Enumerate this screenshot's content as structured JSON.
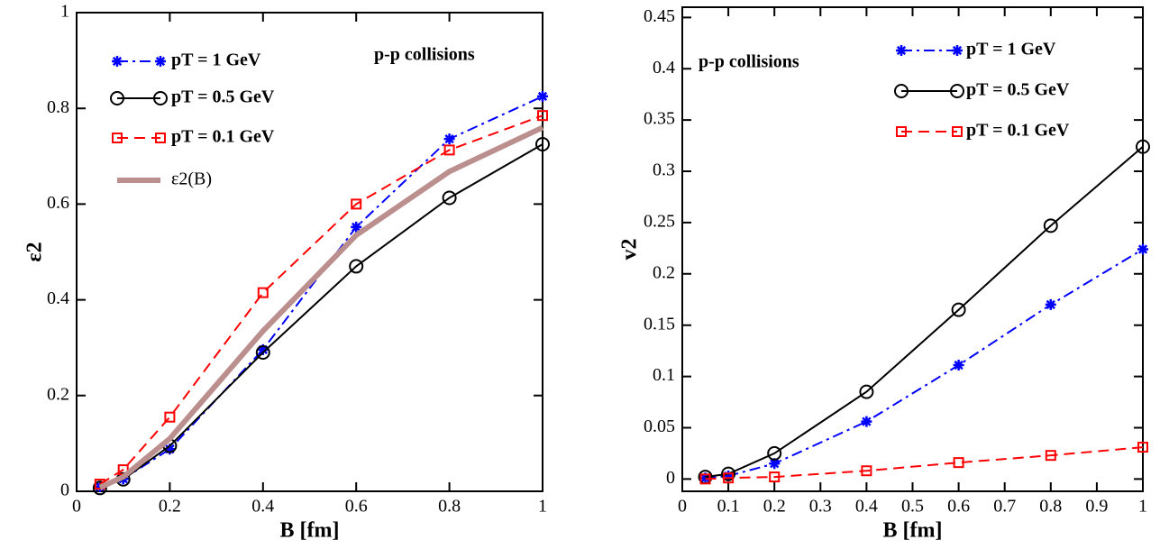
{
  "chart_data": [
    {
      "type": "line",
      "xlabel": "B [fm]",
      "ylabel": "ε2",
      "annotation": "p-p collisions",
      "xlim": [
        0,
        1
      ],
      "ylim": [
        0,
        1
      ],
      "xticks": [
        0,
        0.2,
        0.4,
        0.6,
        0.8,
        1
      ],
      "yticks": [
        0,
        0.2,
        0.4,
        0.6,
        0.8,
        1
      ],
      "x": [
        0.05,
        0.1,
        0.2,
        0.4,
        0.6,
        0.8,
        1
      ],
      "series": [
        {
          "name": "pT = 1 GeV",
          "color": "#0000ff",
          "marker": "star",
          "dash": "dashdot",
          "values": [
            0.01,
            0.026,
            0.088,
            0.296,
            0.552,
            0.736,
            0.825
          ]
        },
        {
          "name": "pT = 0.5 GeV",
          "color": "#000000",
          "marker": "circle",
          "dash": "solid",
          "values": [
            0.007,
            0.025,
            0.095,
            0.29,
            0.47,
            0.613,
            0.725
          ]
        },
        {
          "name": "pT = 0.1 GeV",
          "color": "#ff0000",
          "marker": "square",
          "dash": "dashed",
          "values": [
            0.015,
            0.045,
            0.155,
            0.415,
            0.6,
            0.713,
            0.785
          ]
        },
        {
          "name": "ε2(B)",
          "color": "#bc8f8f",
          "marker": "none",
          "dash": "thick",
          "values": [
            0.008,
            0.03,
            0.11,
            0.335,
            0.535,
            0.668,
            0.76
          ]
        }
      ]
    },
    {
      "type": "line",
      "xlabel": "B [fm]",
      "ylabel": "v2",
      "annotation": "p-p collisions",
      "xlim": [
        0,
        1
      ],
      "ylim": [
        -0.012,
        0.46
      ],
      "xticks": [
        0,
        0.1,
        0.2,
        0.3,
        0.4,
        0.5,
        0.6,
        0.7,
        0.8,
        0.9,
        1
      ],
      "yticks": [
        0,
        0.05,
        0.1,
        0.15,
        0.2,
        0.25,
        0.3,
        0.35,
        0.4,
        0.45
      ],
      "x": [
        0.05,
        0.1,
        0.2,
        0.4,
        0.6,
        0.8,
        1
      ],
      "series": [
        {
          "name": "pT = 1 GeV",
          "color": "#0000ff",
          "marker": "star",
          "dash": "dashdot",
          "values": [
            0.001,
            0.003,
            0.015,
            0.056,
            0.111,
            0.17,
            0.224
          ]
        },
        {
          "name": "pT = 0.5 GeV",
          "color": "#000000",
          "marker": "circle",
          "dash": "solid",
          "values": [
            0.002,
            0.005,
            0.025,
            0.085,
            0.165,
            0.247,
            0.324
          ]
        },
        {
          "name": "pT = 0.1 GeV",
          "color": "#ff0000",
          "marker": "square",
          "dash": "dashed",
          "values": [
            0,
            0.001,
            0.002,
            0.008,
            0.016,
            0.023,
            0.031
          ]
        }
      ]
    }
  ]
}
